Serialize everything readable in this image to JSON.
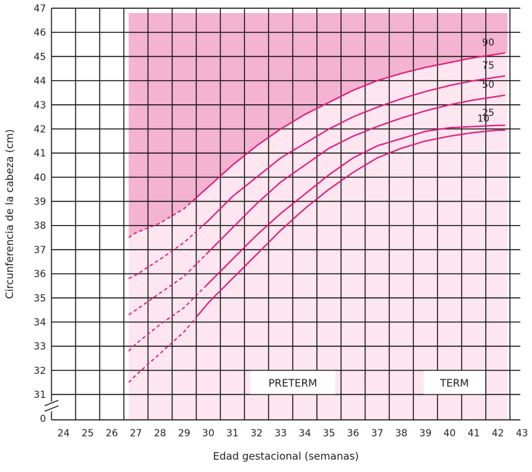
{
  "chart_data": {
    "type": "line",
    "xlabel": "Edad gestacional (semanas)",
    "ylabel": "Circunferencia de la cabeza (cm)",
    "x_ticks": [
      24,
      25,
      26,
      27,
      28,
      29,
      30,
      31,
      32,
      33,
      34,
      35,
      36,
      37,
      38,
      39,
      40,
      41,
      42,
      43
    ],
    "y_ticks": [
      "0",
      31,
      32,
      33,
      34,
      35,
      36,
      37,
      38,
      39,
      40,
      41,
      42,
      43,
      44,
      45,
      46,
      47
    ],
    "xlim": [
      23.5,
      43
    ],
    "ylim": [
      30.5,
      47
    ],
    "zones": [
      "PRETERM",
      "TERM"
    ],
    "series": [
      {
        "name": "90",
        "dashed_x": [
          26.7,
          29.3
        ],
        "solid_x": [
          29.3,
          42.3
        ],
        "x": [
          26.7,
          27,
          28,
          29,
          30,
          31,
          32,
          33,
          34,
          35,
          36,
          37,
          38,
          39,
          40,
          41,
          42,
          42.3
        ],
        "y": [
          37.5,
          37.7,
          38.1,
          38.7,
          39.6,
          40.5,
          41.3,
          42.0,
          42.6,
          43.1,
          43.6,
          44.0,
          44.3,
          44.55,
          44.75,
          44.95,
          45.1,
          45.15
        ]
      },
      {
        "name": "75",
        "dashed_x": [
          26.7,
          29.8
        ],
        "solid_x": [
          29.8,
          42.3
        ],
        "x": [
          26.7,
          27,
          28,
          29,
          30,
          31,
          32,
          33,
          34,
          35,
          36,
          37,
          38,
          39,
          40,
          41,
          42,
          42.3
        ],
        "y": [
          35.8,
          35.95,
          36.6,
          37.3,
          38.2,
          39.2,
          40.0,
          40.8,
          41.4,
          42.0,
          42.5,
          42.9,
          43.25,
          43.55,
          43.8,
          44.0,
          44.15,
          44.2
        ]
      },
      {
        "name": "50",
        "dashed_x": [
          26.7,
          29.9
        ],
        "solid_x": [
          29.9,
          42.3
        ],
        "x": [
          26.7,
          27,
          28,
          29,
          30,
          31,
          32,
          33,
          34,
          35,
          36,
          37,
          38,
          39,
          40,
          41,
          42,
          42.3
        ],
        "y": [
          34.3,
          34.5,
          35.2,
          35.9,
          36.9,
          37.9,
          38.9,
          39.8,
          40.5,
          41.2,
          41.7,
          42.1,
          42.45,
          42.75,
          43.0,
          43.2,
          43.35,
          43.4
        ]
      },
      {
        "name": "25",
        "dashed_x": [
          26.7,
          29.9
        ],
        "solid_x": [
          29.9,
          42.3
        ],
        "x": [
          26.7,
          27,
          28,
          29,
          30,
          31,
          32,
          33,
          34,
          35,
          36,
          37,
          38,
          39,
          40,
          41,
          42,
          42.3
        ],
        "y": [
          32.8,
          33.1,
          33.9,
          34.6,
          35.6,
          36.6,
          37.6,
          38.5,
          39.3,
          40.1,
          40.8,
          41.3,
          41.6,
          41.9,
          42.05,
          42.1,
          42.15,
          42.15
        ]
      },
      {
        "name": "10",
        "dashed_x": [
          26.7,
          29.5
        ],
        "solid_x": [
          29.5,
          42.3
        ],
        "x": [
          26.7,
          27,
          28,
          29,
          30,
          31,
          32,
          33,
          34,
          35,
          36,
          37,
          38,
          39,
          40,
          41,
          42,
          42.3
        ],
        "y": [
          31.5,
          31.8,
          32.7,
          33.6,
          34.8,
          35.8,
          36.8,
          37.8,
          38.7,
          39.5,
          40.2,
          40.8,
          41.2,
          41.5,
          41.7,
          41.85,
          41.95,
          41.95
        ]
      }
    ],
    "colors": {
      "grid": "#111111",
      "curve": "#e0197d",
      "shade_dark": "#f4b3d0",
      "shade_light": "#fde6ef",
      "label_bg": "#ffffff"
    }
  }
}
